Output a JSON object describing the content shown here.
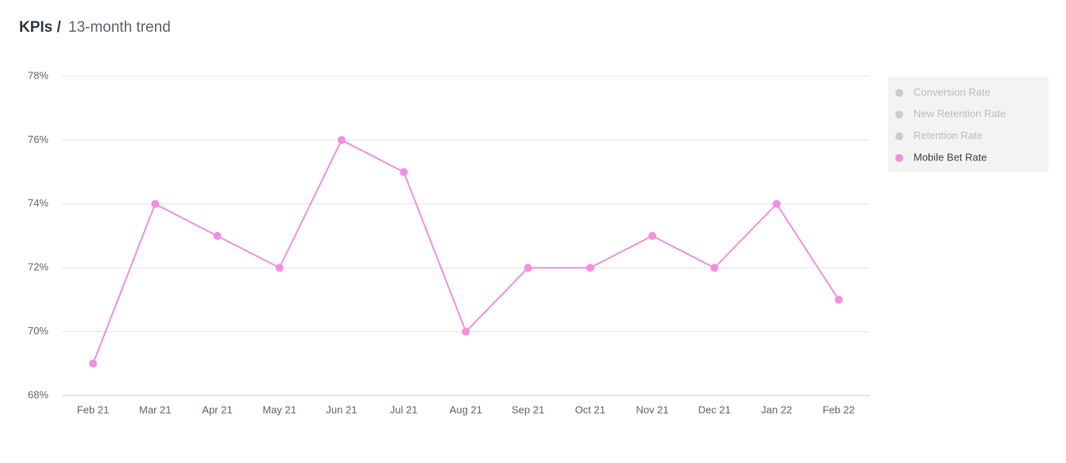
{
  "chart_data": {
    "type": "line",
    "title": "KPIs /",
    "subtitle": "13-month trend",
    "categories": [
      "Feb 21",
      "Mar 21",
      "Apr 21",
      "May 21",
      "Jun 21",
      "Jul 21",
      "Aug 21",
      "Sep 21",
      "Oct 21",
      "Nov 21",
      "Dec 21",
      "Jan 22",
      "Feb 22"
    ],
    "series": [
      {
        "name": "Conversion Rate",
        "color": "#cccccc",
        "hidden": true,
        "values": [
          null,
          null,
          null,
          null,
          null,
          null,
          null,
          null,
          null,
          null,
          null,
          null,
          null
        ]
      },
      {
        "name": "New Retention Rate",
        "color": "#cccccc",
        "hidden": true,
        "values": [
          null,
          null,
          null,
          null,
          null,
          null,
          null,
          null,
          null,
          null,
          null,
          null,
          null
        ]
      },
      {
        "name": "Retention Rate",
        "color": "#cccccc",
        "hidden": true,
        "values": [
          null,
          null,
          null,
          null,
          null,
          null,
          null,
          null,
          null,
          null,
          null,
          null,
          null
        ]
      },
      {
        "name": "Mobile Bet Rate",
        "color": "#f48fdf",
        "hidden": false,
        "values": [
          69,
          74,
          73,
          72,
          76,
          75,
          70,
          72,
          72,
          73,
          72,
          74,
          71
        ]
      }
    ],
    "ylim": [
      68,
      78
    ],
    "yticks": [
      {
        "value": 68,
        "label": "68%"
      },
      {
        "value": 70,
        "label": "70%"
      },
      {
        "value": 72,
        "label": "72%"
      },
      {
        "value": 74,
        "label": "74%"
      },
      {
        "value": 76,
        "label": "76%"
      },
      {
        "value": 78,
        "label": "78%"
      }
    ],
    "grid": true,
    "legend": "right"
  }
}
